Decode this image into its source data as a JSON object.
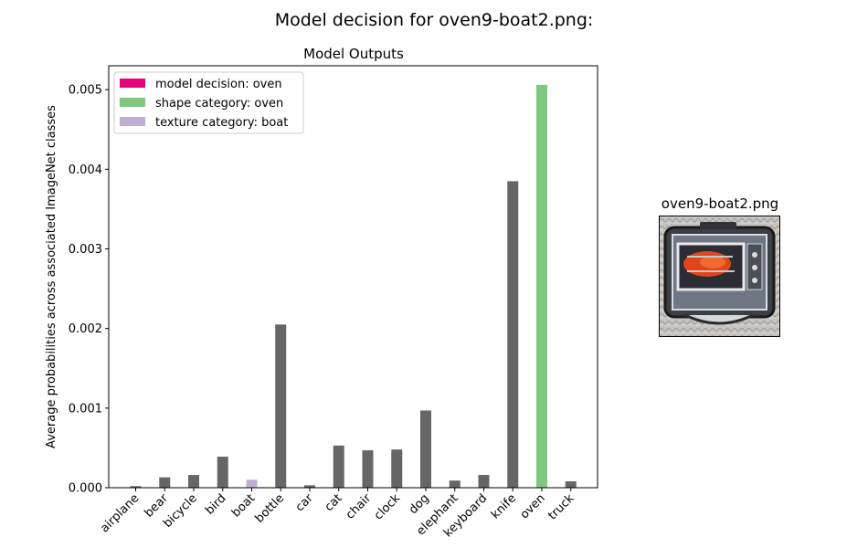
{
  "figure_title": "Model decision for oven9-boat2.png:",
  "image_panel": {
    "title": "oven9-boat2.png",
    "description_icon": "stylized-oven-image"
  },
  "colors": {
    "default_bar": "#666666",
    "model_decision": "#e6007e",
    "shape_category": "#7fc97f",
    "texture_category": "#beaed4"
  },
  "chart_data": {
    "type": "bar",
    "title": "Model Outputs",
    "xlabel": "",
    "ylabel": "Average probabilities across associated ImageNet classes",
    "ylim": [
      0,
      0.0053
    ],
    "yticks": [
      "0.000",
      "0.001",
      "0.002",
      "0.003",
      "0.004",
      "0.005"
    ],
    "categories": [
      "airplane",
      "bear",
      "bicycle",
      "bird",
      "boat",
      "bottle",
      "car",
      "cat",
      "chair",
      "clock",
      "dog",
      "elephant",
      "keyboard",
      "knife",
      "oven",
      "truck"
    ],
    "values": [
      2e-05,
      0.00013,
      0.00016,
      0.00039,
      0.0001,
      0.00205,
      3e-05,
      0.00053,
      0.00047,
      0.00048,
      0.00097,
      9e-05,
      0.00016,
      0.00385,
      0.00506,
      8e-05
    ],
    "bar_roles": [
      "default",
      "default",
      "default",
      "default",
      "texture",
      "default",
      "default",
      "default",
      "default",
      "default",
      "default",
      "default",
      "default",
      "default",
      "shape",
      "default"
    ],
    "legend_position": "upper-left",
    "legend": [
      {
        "label": "model decision: oven",
        "role": "model_decision"
      },
      {
        "label": "shape category: oven",
        "role": "shape_category"
      },
      {
        "label": "texture category: boat",
        "role": "texture_category"
      }
    ]
  }
}
